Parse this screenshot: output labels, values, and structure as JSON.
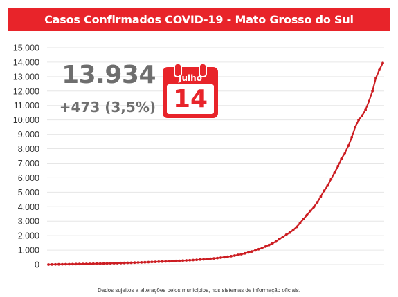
{
  "header": {
    "title": "Casos Confirmados COVID-19 - Mato Grosso do Sul"
  },
  "summary": {
    "total": "13.934",
    "increase": "+473 (3,5%)",
    "calendar_month": "Julho",
    "calendar_day": "14"
  },
  "footer": {
    "note": "Dados sujeitos a alterações pelos municípios, nos sistemas de informação oficiais."
  },
  "colors": {
    "accent": "#e8242a",
    "line": "#cc1d22",
    "grid": "#e6e6e6",
    "text": "#6e6e6e"
  },
  "icons": {
    "calendar": "calendar-icon"
  },
  "chart_data": {
    "type": "line",
    "title": "Casos Confirmados COVID-19 - Mato Grosso do Sul",
    "xlabel": "",
    "ylabel": "",
    "ylim": [
      0,
      15000
    ],
    "yticks": [
      {
        "value": 0,
        "label": "0"
      },
      {
        "value": 1000,
        "label": "1.000"
      },
      {
        "value": 2000,
        "label": "2.000"
      },
      {
        "value": 3000,
        "label": "3.000"
      },
      {
        "value": 4000,
        "label": "4.000"
      },
      {
        "value": 5000,
        "label": "5.000"
      },
      {
        "value": 6000,
        "label": "6.000"
      },
      {
        "value": 7000,
        "label": "7.000"
      },
      {
        "value": 8000,
        "label": "8.000"
      },
      {
        "value": 9000,
        "label": "9.000"
      },
      {
        "value": 10000,
        "label": "10.000"
      },
      {
        "value": 11000,
        "label": "11.000"
      },
      {
        "value": 12000,
        "label": "12.000"
      },
      {
        "value": 13000,
        "label": "13.000"
      },
      {
        "value": 14000,
        "label": "14.000"
      },
      {
        "value": 15000,
        "label": "15.000"
      }
    ],
    "grid": true,
    "legend": "none",
    "series": [
      {
        "values": [
          2,
          6,
          10,
          14,
          18,
          22,
          26,
          30,
          34,
          38,
          42,
          46,
          50,
          55,
          60,
          66,
          72,
          78,
          84,
          90,
          97,
          104,
          111,
          118,
          126,
          134,
          142,
          150,
          159,
          168,
          177,
          186,
          196,
          206,
          216,
          226,
          237,
          248,
          260,
          272,
          285,
          298,
          312,
          327,
          343,
          360,
          379,
          400,
          423,
          448,
          476,
          507,
          541,
          579,
          621,
          667,
          718,
          774,
          836,
          904,
          978,
          1060,
          1149,
          1246,
          1352,
          1467,
          1590,
          1757,
          1910,
          2060,
          2210,
          2380,
          2600,
          2870,
          3150,
          3420,
          3700,
          3980,
          4300,
          4700,
          5100,
          5450,
          5900,
          6350,
          6800,
          7300,
          7700,
          8200,
          8800,
          9500,
          10000,
          10300,
          10700,
          11300,
          12000,
          12900,
          13461,
          13934
        ]
      }
    ]
  }
}
